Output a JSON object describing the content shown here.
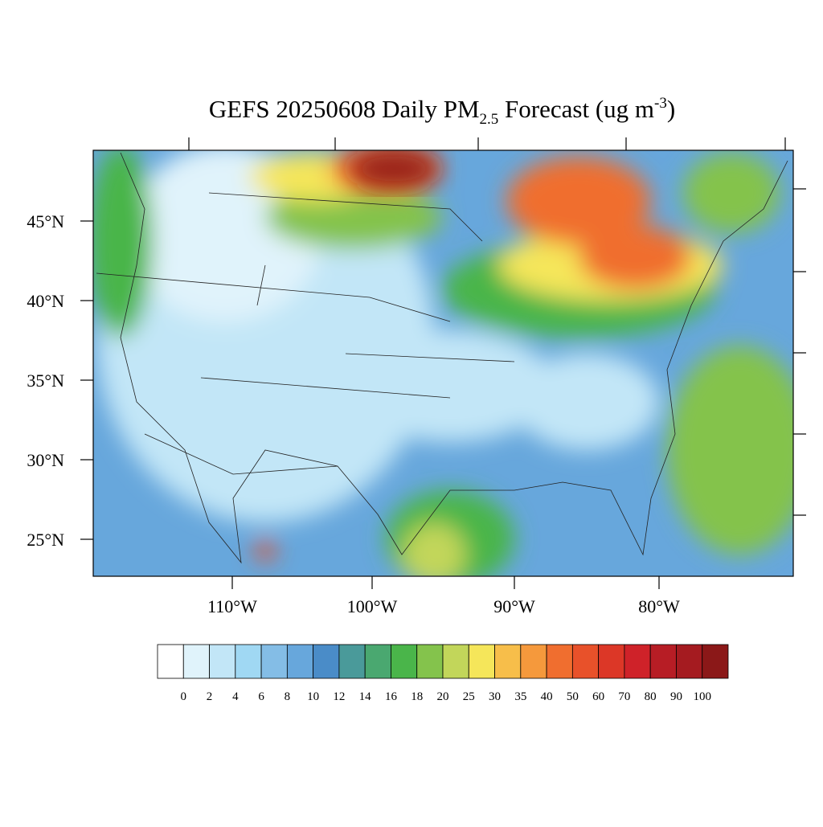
{
  "title": {
    "main": "GEFS 20250608 Daily PM",
    "subscript": "2.5",
    "middle": " Forecast (ug m",
    "superscript": "-3",
    "end": ")"
  },
  "map": {
    "lat_labels": [
      "45°N",
      "40°N",
      "35°N",
      "30°N",
      "25°N"
    ],
    "lon_labels": [
      "110°W",
      "100°W",
      "90°W",
      "80°W"
    ]
  },
  "colorbar": {
    "levels": [
      0,
      2,
      4,
      6,
      8,
      10,
      12,
      14,
      16,
      18,
      20,
      25,
      30,
      35,
      40,
      50,
      60,
      70,
      80,
      90,
      100
    ],
    "colors": [
      "#ffffff",
      "#e0f3fb",
      "#c2e6f7",
      "#a0d8f3",
      "#84bde6",
      "#67a7dc",
      "#4a8cc8",
      "#4a9a9a",
      "#4aa870",
      "#4ab54a",
      "#84c34c",
      "#c2d65a",
      "#f5e65a",
      "#f7be4a",
      "#f5993c",
      "#f06e2f",
      "#e8512a",
      "#dc3727",
      "#cf2229",
      "#b71d25",
      "#a51b20",
      "#8b1818"
    ]
  }
}
